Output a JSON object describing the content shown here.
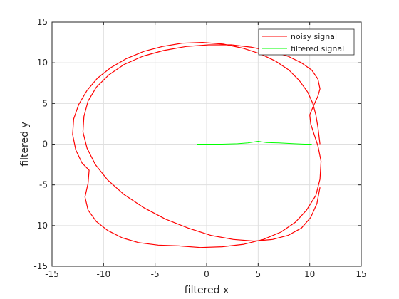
{
  "chart_data": {
    "type": "line",
    "title": "",
    "xlabel": "filtered x",
    "ylabel": "filtered y",
    "xlim": [
      -15,
      15
    ],
    "ylim": [
      -15,
      15
    ],
    "xticks": [
      -15,
      -10,
      -5,
      0,
      5,
      10,
      15
    ],
    "yticks": [
      -15,
      -10,
      -5,
      0,
      5,
      10,
      15
    ],
    "grid": true,
    "legend_location": "top-right",
    "series": [
      {
        "name": "noisy signal",
        "color": "#ff0000",
        "x": [
          11.0,
          10.8,
          10.6,
          10.3,
          9.8,
          9.0,
          8.0,
          6.7,
          5.2,
          3.5,
          1.6,
          -0.4,
          -2.4,
          -4.3,
          -6.1,
          -7.8,
          -9.3,
          -10.6,
          -11.6,
          -12.4,
          -12.9,
          -13.0,
          -12.7,
          -12.1,
          -11.4,
          -11.5,
          -11.8,
          -11.5,
          -10.7,
          -9.6,
          -8.2,
          -6.6,
          -4.7,
          -2.7,
          -0.6,
          1.5,
          3.6,
          5.5,
          7.2,
          8.6,
          9.7,
          10.6,
          11.0,
          11.1,
          10.8,
          10.4,
          10.1,
          10.0,
          10.4,
          10.8,
          11.0,
          10.8,
          10.2,
          9.2,
          7.9,
          6.3,
          4.4,
          2.4,
          0.2,
          -2.0,
          -4.2,
          -6.2,
          -8.0,
          -9.5,
          -10.7,
          -11.5,
          -11.9,
          -12.0,
          -11.6,
          -10.8,
          -9.6,
          -8.0,
          -6.1,
          -4.0,
          -1.8,
          0.4,
          2.6,
          4.6,
          6.4,
          7.9,
          9.2,
          10.1,
          10.7,
          11.0
        ],
        "y": [
          0.0,
          2.1,
          3.6,
          5.0,
          6.4,
          7.8,
          9.1,
          10.2,
          11.1,
          11.8,
          12.3,
          12.5,
          12.4,
          12.0,
          11.4,
          10.5,
          9.4,
          8.1,
          6.6,
          4.9,
          3.1,
          1.2,
          -0.7,
          -2.3,
          -3.2,
          -4.8,
          -6.5,
          -8.1,
          -9.5,
          -10.6,
          -11.5,
          -12.1,
          -12.4,
          -12.5,
          -12.7,
          -12.6,
          -12.3,
          -11.7,
          -10.8,
          -9.6,
          -8.1,
          -6.3,
          -4.3,
          -2.1,
          -0.2,
          1.3,
          2.5,
          3.6,
          4.8,
          5.9,
          6.8,
          8.0,
          9.1,
          10.0,
          10.8,
          11.4,
          11.9,
          12.2,
          12.2,
          12.0,
          11.5,
          10.8,
          9.8,
          8.5,
          7.0,
          5.3,
          3.4,
          1.5,
          -0.5,
          -2.5,
          -4.4,
          -6.2,
          -7.8,
          -9.2,
          -10.3,
          -11.2,
          -11.7,
          -11.9,
          -11.7,
          -11.2,
          -10.3,
          -9.0,
          -7.3,
          -5.3
        ]
      },
      {
        "name": "filtered signal",
        "color": "#00ff00",
        "x": [
          -0.9,
          1.5,
          3.0,
          4.0,
          5.0,
          5.8,
          7.0,
          8.5,
          9.5,
          10.2
        ],
        "y": [
          0.0,
          0.0,
          0.05,
          0.15,
          0.35,
          0.2,
          0.15,
          0.05,
          0.0,
          0.0
        ]
      }
    ]
  }
}
